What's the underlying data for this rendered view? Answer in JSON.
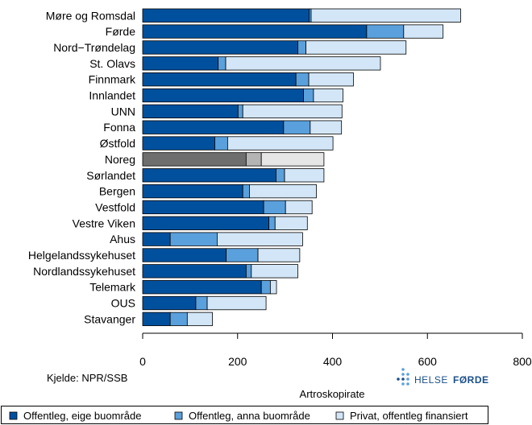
{
  "chart_data": {
    "type": "bar",
    "orientation": "horizontal",
    "stacked": true,
    "xlabel": "Artroskopirate",
    "xlim": [
      0,
      800
    ],
    "xticks": [
      0,
      200,
      400,
      600,
      800
    ],
    "grid": false,
    "legend_position": "bottom",
    "highlight_category": "Noreg",
    "categories": [
      "Møre og Romsdal",
      "Førde",
      "Nord−Trøndelag",
      "St. Olavs",
      "Finnmark",
      "Innlandet",
      "UNN",
      "Fonna",
      "Østfold",
      "Noreg",
      "Sørlandet",
      "Bergen",
      "Vestfold",
      "Vestre Viken",
      "Ahus",
      "Helgelandssykehuset",
      "Nordlandssykehuset",
      "Telemark",
      "OUS",
      "Stavanger"
    ],
    "series": [
      {
        "name": "Offentleg, eige buområde",
        "color": "#00509e",
        "highlight_color": "#6e6e6e",
        "values": [
          351,
          472,
          327,
          159,
          323,
          339,
          201,
          297,
          152,
          218,
          281,
          211,
          255,
          266,
          58,
          176,
          218,
          250,
          112,
          58
        ]
      },
      {
        "name": "Offentleg, anna buområde",
        "color": "#5aa0dc",
        "highlight_color": "#b4b4b4",
        "values": [
          4,
          78,
          17,
          16,
          27,
          21,
          10,
          56,
          27,
          32,
          18,
          14,
          46,
          13,
          99,
          67,
          11,
          19,
          24,
          36
        ]
      },
      {
        "name": "Privat, offentleg finansiert",
        "color": "#d3e6f7",
        "highlight_color": "#e6e6e6",
        "values": [
          315,
          83,
          211,
          326,
          94,
          62,
          209,
          66,
          222,
          132,
          83,
          141,
          56,
          68,
          180,
          88,
          98,
          13,
          124,
          53
        ]
      }
    ]
  },
  "source_text": "Kjelde: NPR/SSB",
  "logo": {
    "word1": "HELSE",
    "word2": "FØRDE"
  }
}
